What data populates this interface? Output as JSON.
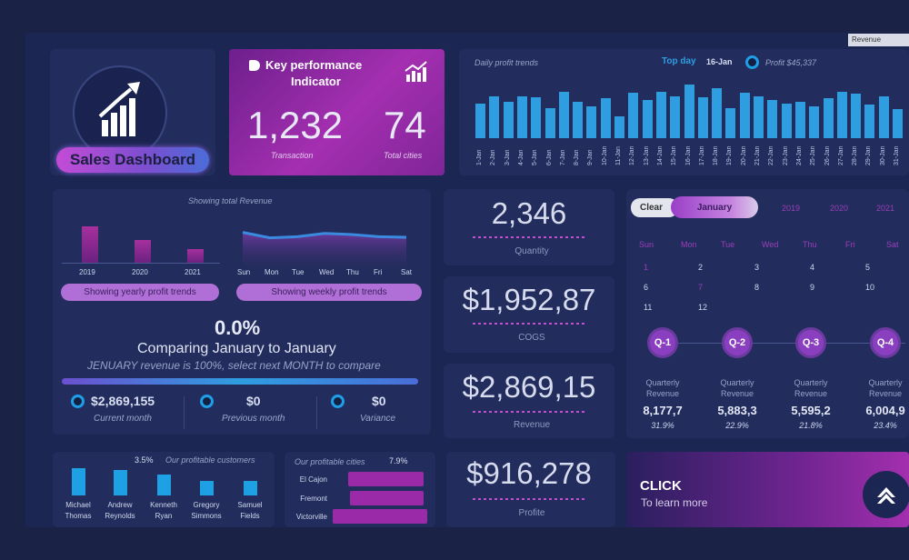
{
  "revenue_dropdown": "Revenue",
  "logo": {
    "label": "Sales Dashboard"
  },
  "kpi": {
    "title_line1": "Key performance",
    "title_line2": "Indicator",
    "transactions": "1,232",
    "transactions_label": "Transaction",
    "cities": "74",
    "cities_label": "Total cities"
  },
  "daily": {
    "title": "Daily profit trends",
    "top_day_label": "Top day",
    "top_day": "16-Jan",
    "profit": "Profit $45,337"
  },
  "chart_data": [
    {
      "type": "bar",
      "title": "Daily profit trends",
      "categories": [
        "1-Jan",
        "2-Jan",
        "3-Jan",
        "4-Jan",
        "5-Jan",
        "6-Jan",
        "7-Jan",
        "8-Jan",
        "9-Jan",
        "10-Jan",
        "11-Jan",
        "12-Jan",
        "13-Jan",
        "14-Jan",
        "15-Jan",
        "16-Jan",
        "17-Jan",
        "18-Jan",
        "19-Jan",
        "20-Jan",
        "21-Jan",
        "22-Jan",
        "23-Jan",
        "24-Jan",
        "25-Jan",
        "26-Jan",
        "27-Jan",
        "28-Jan",
        "29-Jan",
        "30-Jan",
        "31-Jan"
      ],
      "values": [
        60,
        72,
        62,
        72,
        70,
        52,
        80,
        62,
        54,
        68,
        38,
        78,
        66,
        80,
        72,
        92,
        70,
        86,
        52,
        78,
        72,
        66,
        60,
        62,
        54,
        68,
        80,
        76,
        58,
        72,
        50
      ]
    },
    {
      "type": "bar",
      "title": "Showing yearly profit trends",
      "categories": [
        "2019",
        "2020",
        "2021"
      ],
      "values": [
        100,
        62,
        38
      ]
    },
    {
      "type": "line",
      "title": "Showing weekly profit trends",
      "categories": [
        "Sun",
        "Mon",
        "Tue",
        "Wed",
        "Thu",
        "Fri",
        "Sat"
      ],
      "values": [
        64,
        54,
        56,
        62,
        60,
        56,
        55
      ]
    },
    {
      "type": "bar",
      "title": "Our profitable customers",
      "annotation": "3.5%",
      "categories": [
        "Michael Thomas",
        "Andrew Reynolds",
        "Kenneth Ryan",
        "Gregory Simmons",
        "Samuel Fields"
      ],
      "values": [
        30,
        28,
        23,
        16,
        16
      ]
    },
    {
      "type": "bar",
      "title": "Our profitable cities",
      "annotation": "7.9%",
      "categories": [
        "El Cajon",
        "Fremont",
        "Victorville"
      ],
      "values": [
        80,
        78,
        100
      ]
    }
  ],
  "overview": {
    "showing_total": "Showing total  Revenue",
    "yearly_btn": "Showing yearly profit trends",
    "weekly_btn": "Showing weekly profit trends",
    "percent": "0.0%",
    "compare": "Comparing January to January",
    "hint": "JENUARY revenue is 100%, select next MONTH to compare",
    "current_value": "$2,869,155",
    "current_label": "Current month",
    "previous_value": "$0",
    "previous_label": "Previous month",
    "variance_value": "$0",
    "variance_label": "Variance"
  },
  "metrics": [
    {
      "value": "2,346",
      "label": "Quantity"
    },
    {
      "value": "$1,952,87",
      "label": "COGS"
    },
    {
      "value": "$2,869,15",
      "label": "Revenue"
    },
    {
      "value": "$916,278",
      "label": "Profite"
    }
  ],
  "calendar": {
    "clear": "Clear",
    "month": "January",
    "years": [
      "2019",
      "2020",
      "2021"
    ],
    "weekdays": [
      "Sun",
      "Mon",
      "Tue",
      "Wed",
      "Thu",
      "Fri",
      "Sat"
    ],
    "days": [
      "1",
      "2",
      "3",
      "4",
      "5",
      "6",
      "7",
      "8",
      "9",
      "10",
      "11",
      "12"
    ]
  },
  "quarters": [
    {
      "label": "Q-1",
      "caption": "Quarterly Revenue",
      "value": "8,177,7",
      "pct": "31.9%"
    },
    {
      "label": "Q-2",
      "caption": "Quarterly Revenue",
      "value": "5,883,3",
      "pct": "22.9%"
    },
    {
      "label": "Q-3",
      "caption": "Quarterly Revenue",
      "value": "5,595,2",
      "pct": "21.8%"
    },
    {
      "label": "Q-4",
      "caption": "Quarterly Revenue",
      "value": "6,004,9",
      "pct": "23.4%"
    }
  ],
  "customers": {
    "pct": "3.5%",
    "title": "Our profitable customers",
    "names": [
      [
        "Michael",
        "Thomas"
      ],
      [
        "Andrew",
        "Reynolds"
      ],
      [
        "Kenneth",
        "Ryan"
      ],
      [
        "Gregory",
        "Simmons"
      ],
      [
        "Samuel",
        "Fields"
      ]
    ]
  },
  "cities": {
    "title": "Our profitable cities",
    "pct": "7.9%",
    "names": [
      "El Cajon",
      "Fremont",
      "Victorville"
    ]
  },
  "cta": {
    "title": "CLICK",
    "subtitle": "To learn more"
  },
  "colors": {
    "background": "#1a2346",
    "panel": "#222d5d",
    "accent_blue": "#2e9ee0",
    "accent_purple": "#a42fb0"
  }
}
